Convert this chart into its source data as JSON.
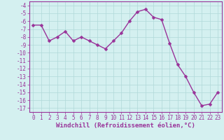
{
  "x": [
    0,
    1,
    2,
    3,
    4,
    5,
    6,
    7,
    8,
    9,
    10,
    11,
    12,
    13,
    14,
    15,
    16,
    17,
    18,
    19,
    20,
    21,
    22,
    23
  ],
  "y": [
    -6.5,
    -6.5,
    -8.5,
    -8.0,
    -7.3,
    -8.5,
    -8.0,
    -8.5,
    -9.0,
    -9.5,
    -8.5,
    -7.5,
    -6.0,
    -4.8,
    -4.5,
    -5.5,
    -5.8,
    -8.8,
    -11.5,
    -13.0,
    -15.0,
    -16.7,
    -16.5,
    -15.0
  ],
  "line_color": "#993399",
  "marker_color": "#993399",
  "bg_color": "#d4f0f0",
  "grid_color": "#b0d8d8",
  "xlabel": "Windchill (Refroidissement éolien,°C)",
  "xlabel_color": "#993399",
  "tick_color": "#993399",
  "axes_color": "#993399",
  "ylim": [
    -17.5,
    -3.5
  ],
  "xlim": [
    -0.5,
    23.5
  ],
  "yticks": [
    -4,
    -5,
    -6,
    -7,
    -8,
    -9,
    -10,
    -11,
    -12,
    -13,
    -14,
    -15,
    -16,
    -17
  ],
  "xticks": [
    0,
    1,
    2,
    3,
    4,
    5,
    6,
    7,
    8,
    9,
    10,
    11,
    12,
    13,
    14,
    15,
    16,
    17,
    18,
    19,
    20,
    21,
    22,
    23
  ],
  "tick_fontsize": 5.5,
  "xlabel_fontsize": 6.5,
  "linewidth": 1.0,
  "markersize": 2.5
}
